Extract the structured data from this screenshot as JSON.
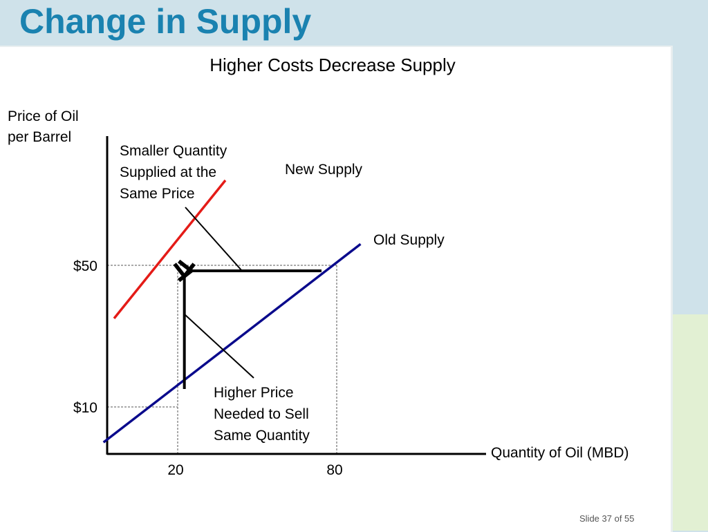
{
  "slide": {
    "title": "Change in Supply",
    "number_label": "Slide 37 of 55"
  },
  "chart_data": {
    "type": "line",
    "title": "Higher Costs Decrease Supply",
    "ylabel": [
      "Price of Oil",
      "per Barrel"
    ],
    "xlabel": "Quantity of Oil (MBD)",
    "y_ticks": [
      {
        "value": 10,
        "label": "$10"
      },
      {
        "value": 50,
        "label": "$50"
      }
    ],
    "x_ticks": [
      {
        "value": 20,
        "label": "20"
      },
      {
        "value": 80,
        "label": "80"
      }
    ],
    "series": [
      {
        "name": "Old Supply",
        "color": "#0a0a8c",
        "points": [
          [
            -8,
            0
          ],
          [
            89,
            56
          ]
        ]
      },
      {
        "name": "New Supply",
        "color": "#e41b17",
        "points": [
          [
            -4,
            35
          ],
          [
            38,
            74
          ]
        ]
      }
    ],
    "annotations": [
      {
        "lines": [
          "Smaller Quantity",
          "Supplied at the",
          "Same Price"
        ]
      },
      {
        "lines": [
          "Higher Price",
          "Needed to Sell",
          "Same Quantity"
        ]
      }
    ],
    "arrows": [
      {
        "meaning": "quantity decreases at $50",
        "from": [
          80,
          50
        ],
        "to": [
          22,
          50
        ]
      },
      {
        "meaning": "price increases at quantity 20",
        "from": [
          22,
          10
        ],
        "to": [
          22,
          50
        ]
      }
    ],
    "reference_lines": [
      {
        "x": 20,
        "y": 50
      },
      {
        "x": 80,
        "y": 50
      },
      {
        "x": 20,
        "y": 10
      }
    ]
  }
}
